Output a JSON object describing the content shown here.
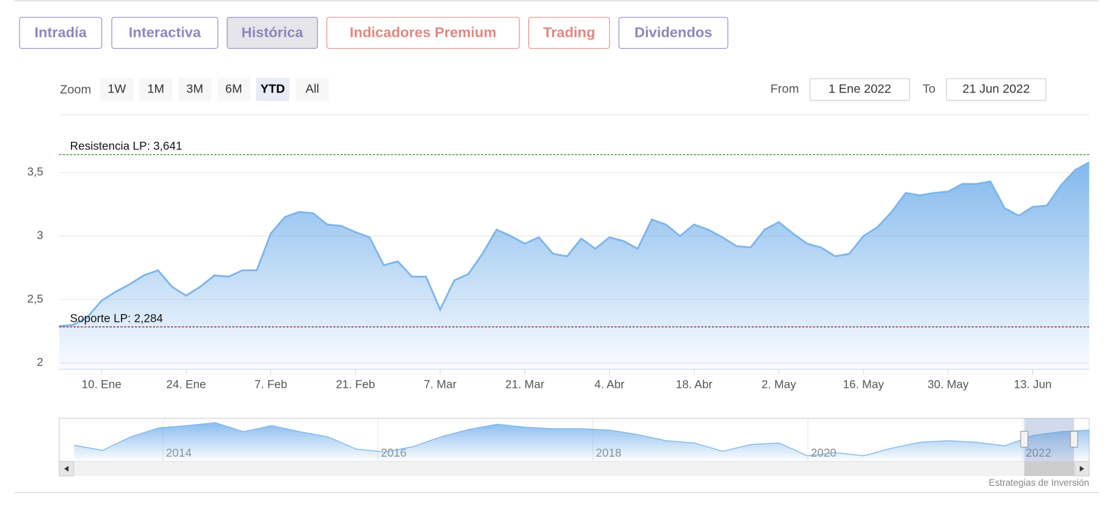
{
  "tabs": [
    "Intradía",
    "Interactiva",
    "Histórica",
    "Indicadores Premium",
    "Trading",
    "Dividendos"
  ],
  "active_tab": 2,
  "zoom": {
    "label": "Zoom",
    "buttons": [
      "1W",
      "1M",
      "3M",
      "6M",
      "YTD",
      "All"
    ],
    "active": 4
  },
  "range": {
    "from_label": "From",
    "from": "1 Ene 2022",
    "to_label": "To",
    "to": "21 Jun 2022"
  },
  "chart_data": {
    "type": "area",
    "color": "#7cb5ec",
    "grid": true,
    "categories": [
      "3. Ene",
      "5. Ene",
      "7. Ene",
      "10. Ene",
      "12. Ene",
      "14. Ene",
      "17. Ene",
      "19. Ene",
      "21. Ene",
      "24. Ene",
      "26. Ene",
      "28. Ene",
      "31. Ene",
      "2. Feb",
      "4. Feb",
      "7. Feb",
      "9. Feb",
      "11. Feb",
      "14. Feb",
      "16. Feb",
      "18. Feb",
      "21. Feb",
      "23. Feb",
      "25. Feb",
      "28. Feb",
      "2. Mar",
      "4. Mar",
      "7. Mar",
      "9. Mar",
      "11. Mar",
      "14. Mar",
      "16. Mar",
      "18. Mar",
      "21. Mar",
      "23. Mar",
      "25. Mar",
      "28. Mar",
      "30. Mar",
      "1. Abr",
      "4. Abr",
      "6. Abr",
      "8. Abr",
      "11. Abr",
      "13. Abr",
      "15. Abr",
      "18. Abr",
      "20. Abr",
      "22. Abr",
      "25. Abr",
      "27. Abr",
      "29. Abr",
      "2. May",
      "4. May",
      "6. May",
      "9. May",
      "11. May",
      "13. May",
      "16. May",
      "18. May",
      "20. May",
      "23. May",
      "25. May",
      "27. May",
      "30. May",
      "1. Jun",
      "3. Jun",
      "6. Jun",
      "8. Jun",
      "10. Jun",
      "13. Jun",
      "15. Jun",
      "17. Jun",
      "20. Jun",
      "21. Jun"
    ],
    "values": [
      2.29,
      2.3,
      2.36,
      2.49,
      2.56,
      2.62,
      2.69,
      2.73,
      2.6,
      2.53,
      2.6,
      2.69,
      2.68,
      2.73,
      2.73,
      3.02,
      3.15,
      3.19,
      3.18,
      3.09,
      3.08,
      3.03,
      2.99,
      2.77,
      2.8,
      2.68,
      2.68,
      2.42,
      2.65,
      2.7,
      2.86,
      3.05,
      3.0,
      2.94,
      2.99,
      2.86,
      2.84,
      2.98,
      2.9,
      2.99,
      2.96,
      2.9,
      3.13,
      3.09,
      3.0,
      3.09,
      3.05,
      2.99,
      2.92,
      2.91,
      3.05,
      3.11,
      3.02,
      2.94,
      2.91,
      2.84,
      2.86,
      3.0,
      3.07,
      3.19,
      3.34,
      3.32,
      3.34,
      3.35,
      3.41,
      3.41,
      3.43,
      3.22,
      3.16,
      3.23,
      3.24,
      3.4,
      3.52,
      3.58
    ],
    "xticks": [
      "10. Ene",
      "24. Ene",
      "7. Feb",
      "21. Feb",
      "7. Mar",
      "21. Mar",
      "4. Abr",
      "18. Abr",
      "2. May",
      "16. May",
      "30. May",
      "13. Jun"
    ],
    "ylim": [
      1.95,
      3.95
    ],
    "yticks": [
      2,
      {
        "value": 2.5,
        "label": "2,5"
      },
      3,
      {
        "value": 3.5,
        "label": "3,5"
      }
    ],
    "annotations": [
      {
        "label": "Resistencia LP: 3,641",
        "value": 3.641,
        "color": "#2e8b2e"
      },
      {
        "label": "Soporte LP: 2,284",
        "value": 2.284,
        "color": "#8b1a2a"
      }
    ]
  },
  "navigator": {
    "xticks": [
      "2014",
      "2016",
      "2018",
      "2020",
      "2022"
    ],
    "values": [
      2.5,
      2.27,
      2.87,
      3.27,
      3.37,
      3.5,
      3.1,
      3.37,
      3.1,
      2.87,
      2.33,
      2.2,
      2.43,
      2.87,
      3.2,
      3.43,
      3.3,
      3.23,
      3.23,
      3.17,
      2.97,
      2.7,
      2.6,
      2.23,
      2.53,
      2.6,
      2.03,
      2.17,
      2.03,
      2.37,
      2.63,
      2.7,
      2.63,
      2.47,
      2.93,
      3.1,
      3.17
    ]
  },
  "credit": "Estrategias de Inversión"
}
